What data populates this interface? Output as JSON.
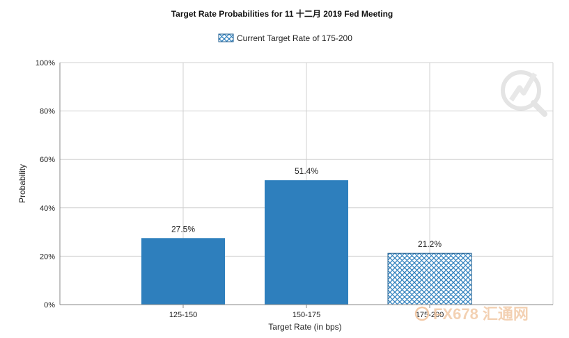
{
  "chart_data": {
    "type": "bar",
    "title": "Target Rate Probabilities for 11 十二月 2019 Fed Meeting",
    "xlabel": "Target Rate (in bps)",
    "ylabel": "Probability",
    "categories": [
      "125-150",
      "150-175",
      "175-200"
    ],
    "values": [
      27.5,
      51.4,
      21.2
    ],
    "data_labels": [
      "27.5%",
      "51.4%",
      "21.2%"
    ],
    "ylim": [
      0,
      100
    ],
    "yticks": [
      "0%",
      "20%",
      "40%",
      "60%",
      "80%",
      "100%"
    ],
    "grid": true,
    "legend": {
      "position": "top-center",
      "entries": [
        "Current Target Rate of 175-200"
      ]
    },
    "highlighted_category": "175-200",
    "colors": {
      "bar": "#2e7fbd",
      "hatch_bg": "#ffffff",
      "grid": "#d0d0d0",
      "axis": "#888888"
    }
  },
  "watermark": {
    "text": "FX678 汇通网",
    "logo": "magnifier-lightning-icon"
  }
}
